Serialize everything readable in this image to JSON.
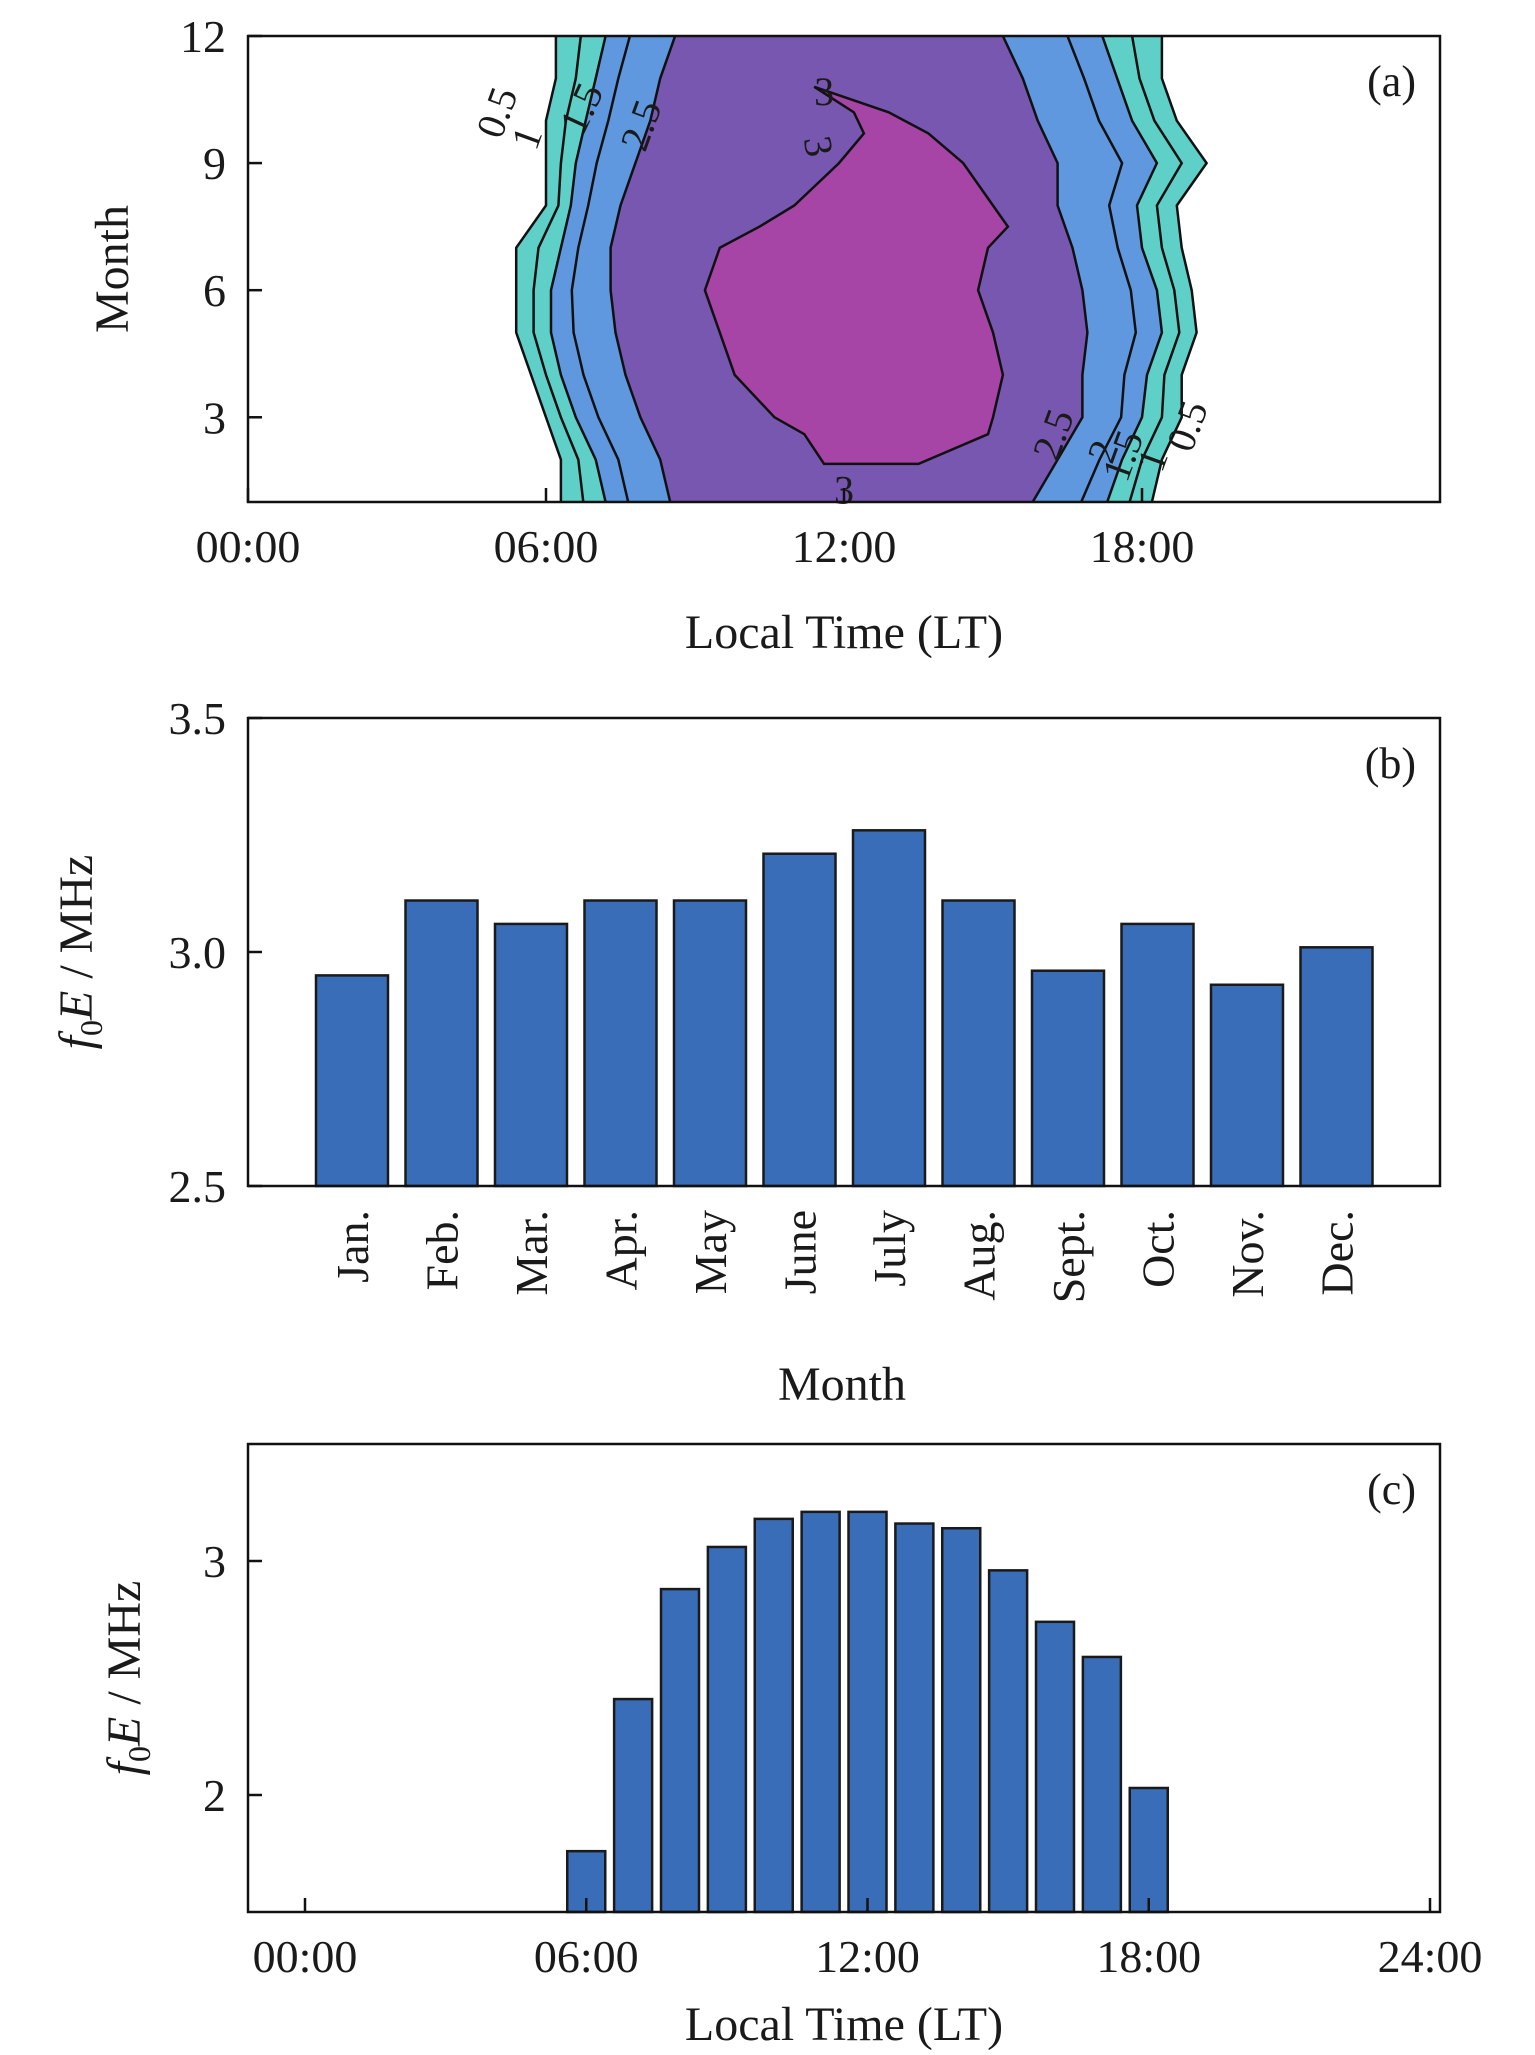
{
  "figure": {
    "colors": {
      "bar_fill": "#3a6db7",
      "bar_edge": "#1a1a1a",
      "level_0_5": "#5fd0c8",
      "level_1_5": "#5f98de",
      "level_2_5": "#7757b0",
      "level_3": "#a645a6"
    }
  },
  "chart_data": [
    {
      "type": "contour",
      "panel_label": "(a)",
      "xlabel": "Local Time (LT)",
      "ylabel": "Month",
      "xlim": [
        0,
        24
      ],
      "ylim": [
        1,
        12
      ],
      "xticks": [
        "00:00",
        "06:00",
        "12:00",
        "18:00"
      ],
      "xtick_values": [
        0,
        6,
        12,
        18
      ],
      "yticks": [
        3,
        6,
        9,
        12
      ],
      "contour_levels": [
        0.5,
        1,
        1.5,
        2,
        2.5,
        3
      ],
      "contour_labels": [
        "0.5",
        "1",
        "1.5",
        "2",
        "2.5",
        "3"
      ],
      "region_boundaries_hours": {
        "0.5": {
          "months": [
            1,
            2,
            3,
            4,
            5,
            6,
            7,
            8,
            9,
            10,
            11,
            12
          ],
          "start": [
            6.3,
            6.3,
            6.0,
            5.7,
            5.4,
            5.4,
            5.4,
            6.0,
            6.0,
            6.0,
            6.2,
            6.2
          ],
          "end": [
            18.2,
            18.4,
            18.8,
            18.8,
            19.1,
            19.0,
            18.8,
            18.7,
            19.3,
            18.7,
            18.4,
            18.4
          ]
        },
        "1.5": {
          "months": [
            1,
            2,
            3,
            4,
            5,
            6,
            7,
            8,
            9,
            10,
            11,
            12
          ],
          "start": [
            7.2,
            7.0,
            6.6,
            6.3,
            6.1,
            6.1,
            6.3,
            6.5,
            6.6,
            6.8,
            7.0,
            7.2
          ],
          "end": [
            17.3,
            17.6,
            18.0,
            18.1,
            18.4,
            18.3,
            18.0,
            17.9,
            18.3,
            17.8,
            17.5,
            17.2
          ]
        },
        "2.5": {
          "months": [
            1,
            2,
            3,
            4,
            5,
            6,
            7,
            8,
            9,
            10,
            11,
            12
          ],
          "start": [
            8.5,
            8.3,
            7.9,
            7.6,
            7.4,
            7.3,
            7.3,
            7.5,
            7.8,
            8.1,
            8.3,
            8.6
          ],
          "end": [
            15.8,
            16.3,
            16.8,
            16.8,
            16.9,
            16.8,
            16.6,
            16.3,
            16.3,
            15.9,
            15.6,
            15.2
          ]
        },
        "3": {
          "months": [
            1.9,
            2.6,
            3,
            4,
            5,
            6,
            7,
            7.5,
            8,
            9,
            9.7,
            10.2,
            10.8
          ],
          "start": [
            11.6,
            11.2,
            10.6,
            9.8,
            9.5,
            9.2,
            9.5,
            10.3,
            11.0,
            11.9,
            12.4,
            12.2,
            11.4
          ],
          "end": [
            13.5,
            14.9,
            15.0,
            15.2,
            15.0,
            14.7,
            14.9,
            15.3,
            15.0,
            14.4,
            13.7,
            12.9,
            11.4
          ]
        }
      }
    },
    {
      "type": "bar",
      "panel_label": "(b)",
      "xlabel": "Month",
      "ylabel_main": "f",
      "ylabel_sub": "0",
      "ylabel_italic": "E",
      "ylabel_unit": " / MHz",
      "ylim": [
        2.5,
        3.5
      ],
      "yticks": [
        "2.5",
        "3.0",
        "3.5"
      ],
      "ytick_values": [
        2.5,
        3.0,
        3.5
      ],
      "categories": [
        "Jan.",
        "Feb.",
        "Mar.",
        "Apr.",
        "May",
        "June",
        "July",
        "Aug.",
        "Sept.",
        "Oct.",
        "Nov.",
        "Dec."
      ],
      "values": [
        2.95,
        3.11,
        3.06,
        3.11,
        3.11,
        3.21,
        3.26,
        3.11,
        2.96,
        3.06,
        2.93,
        3.01
      ]
    },
    {
      "type": "bar",
      "panel_label": "(c)",
      "xlabel": "Local Time (LT)",
      "ylabel_main": "f",
      "ylabel_sub": "0",
      "ylabel_italic": "E",
      "ylabel_unit": " / MHz",
      "xlim": [
        0,
        24
      ],
      "ylim": [
        1.5,
        3.5
      ],
      "xticks": [
        "00:00",
        "06:00",
        "12:00",
        "18:00",
        "24:00"
      ],
      "xtick_values": [
        0,
        6,
        12,
        18,
        24
      ],
      "yticks": [
        "2",
        "3"
      ],
      "ytick_values": [
        2,
        3
      ],
      "x": [
        6,
        7,
        8,
        9,
        10,
        11,
        12,
        13,
        14,
        15,
        16,
        17,
        18
      ],
      "values": [
        1.76,
        2.41,
        2.88,
        3.06,
        3.18,
        3.21,
        3.21,
        3.16,
        3.14,
        2.96,
        2.74,
        2.59,
        2.03
      ]
    }
  ]
}
